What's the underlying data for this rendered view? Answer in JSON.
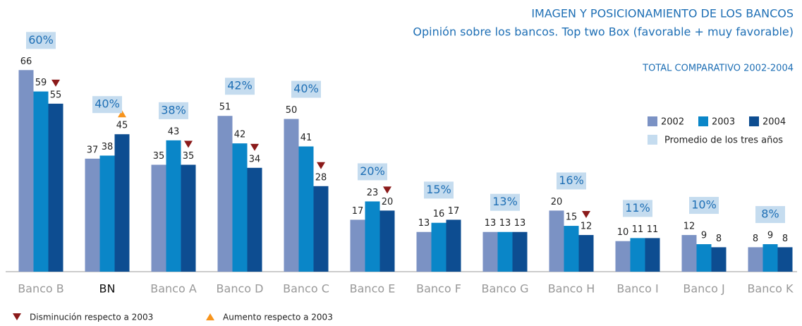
{
  "chart_data": {
    "type": "bar",
    "title": "IMAGEN Y POSICIONAMIENTO DE LOS BANCOS",
    "subtitle": "Opinión sobre los bancos. Top two Box (favorable + muy favorable)",
    "note": "TOTAL COMPARATIVO 2002-2004",
    "categories": [
      "Banco B",
      "BN",
      "Banco A",
      "Banco D",
      "Banco C",
      "Banco E",
      "Banco F",
      "Banco G",
      "Banco H",
      "Banco I",
      "Banco J",
      "Banco K"
    ],
    "highlight_index": 1,
    "series": [
      {
        "name": "2002",
        "color": "#7b92c4",
        "values": [
          66,
          37,
          35,
          51,
          50,
          17,
          13,
          13,
          20,
          10,
          12,
          8
        ]
      },
      {
        "name": "2003",
        "color": "#0a86c8",
        "values": [
          59,
          38,
          43,
          42,
          41,
          23,
          16,
          13,
          15,
          11,
          9,
          9
        ]
      },
      {
        "name": "2004",
        "color": "#0d4d91",
        "values": [
          55,
          45,
          35,
          34,
          28,
          20,
          17,
          13,
          12,
          11,
          8,
          8
        ]
      }
    ],
    "average": {
      "name": "Promedio de los tres años",
      "color": "#c5dcef",
      "values": [
        60,
        40,
        38,
        42,
        40,
        20,
        15,
        13,
        16,
        11,
        10,
        8
      ],
      "value_labels": [
        "60%",
        "40%",
        "38%",
        "42%",
        "40%",
        "20%",
        "15%",
        "13%",
        "16%",
        "11%",
        "10%",
        "8%"
      ]
    },
    "trends": [
      "down",
      "up",
      "down",
      "down",
      "down",
      "down",
      null,
      null,
      "down",
      null,
      null,
      null
    ],
    "markers": {
      "down": {
        "name": "Disminución respecto a 2003",
        "color": "#8b1a1a"
      },
      "up": {
        "name": "Aumento respecto a 2003",
        "color": "#f7941d"
      }
    },
    "ylim": [
      0,
      70
    ]
  }
}
